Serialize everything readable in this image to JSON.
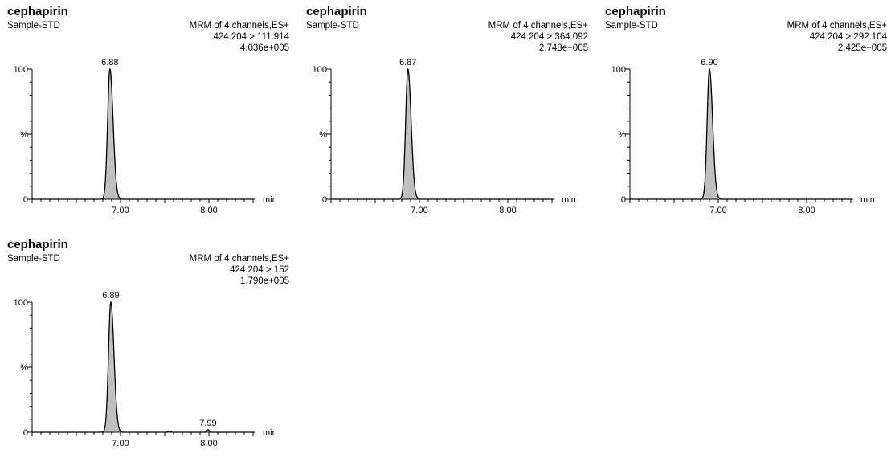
{
  "chart_data": [
    {
      "type": "line",
      "title": "cephapirin",
      "subtitle": "Sample-STD",
      "header": [
        "MRM of 4 channels,ES+",
        "424.204 > 111.914",
        "4.036e+005"
      ],
      "xlabel": "min",
      "ylabel": "%",
      "xlim": [
        6.0,
        8.5
      ],
      "ylim": [
        0,
        100
      ],
      "x_ticks": [
        "7.00",
        "8.00"
      ],
      "y_ticks": [
        "0",
        "%",
        "100"
      ],
      "series": [
        {
          "peaks": [
            {
              "rt": 6.88,
              "height": 100
            }
          ]
        }
      ],
      "peak_labels": [
        {
          "x": 6.88,
          "y": 100,
          "text": "6.88"
        }
      ]
    },
    {
      "type": "line",
      "title": "cephapirin",
      "subtitle": "Sample-STD",
      "header": [
        "MRM of 4 channels,ES+",
        "424.204 > 364.092",
        "2.748e+005"
      ],
      "xlabel": "min",
      "ylabel": "%",
      "xlim": [
        6.0,
        8.5
      ],
      "ylim": [
        0,
        100
      ],
      "x_ticks": [
        "7.00",
        "8.00"
      ],
      "y_ticks": [
        "0",
        "%",
        "100"
      ],
      "series": [
        {
          "peaks": [
            {
              "rt": 6.87,
              "height": 100
            }
          ]
        }
      ],
      "peak_labels": [
        {
          "x": 6.87,
          "y": 100,
          "text": "6.87"
        }
      ]
    },
    {
      "type": "line",
      "title": "cephapirin",
      "subtitle": "Sample-STD",
      "header": [
        "MRM of 4 channels,ES+",
        "424.204 > 292.104",
        "2.425e+005"
      ],
      "xlabel": "min",
      "ylabel": "%",
      "xlim": [
        6.0,
        8.5
      ],
      "ylim": [
        0,
        100
      ],
      "x_ticks": [
        "7.00",
        "8.00"
      ],
      "y_ticks": [
        "0",
        "%",
        "100"
      ],
      "series": [
        {
          "peaks": [
            {
              "rt": 6.9,
              "height": 100
            }
          ]
        }
      ],
      "peak_labels": [
        {
          "x": 6.9,
          "y": 100,
          "text": "6.90"
        }
      ]
    },
    {
      "type": "line",
      "title": "cephapirin",
      "subtitle": "Sample-STD",
      "header": [
        "MRM of 4 channels,ES+",
        "424.204 > 152",
        "1.790e+005"
      ],
      "xlabel": "min",
      "ylabel": "%",
      "xlim": [
        6.0,
        8.5
      ],
      "ylim": [
        0,
        100
      ],
      "x_ticks": [
        "7.00",
        "8.00"
      ],
      "y_ticks": [
        "0",
        "%",
        "100"
      ],
      "series": [
        {
          "peaks": [
            {
              "rt": 6.89,
              "height": 100
            },
            {
              "rt": 7.55,
              "height": 1
            },
            {
              "rt": 7.99,
              "height": 2
            }
          ]
        }
      ],
      "peak_labels": [
        {
          "x": 6.89,
          "y": 100,
          "text": "6.89"
        },
        {
          "x": 7.99,
          "y": 2,
          "text": "7.99"
        }
      ]
    }
  ],
  "colors": {
    "peak_fill": "#c0c0c0",
    "line": "#000000",
    "background": "#ffffff"
  }
}
